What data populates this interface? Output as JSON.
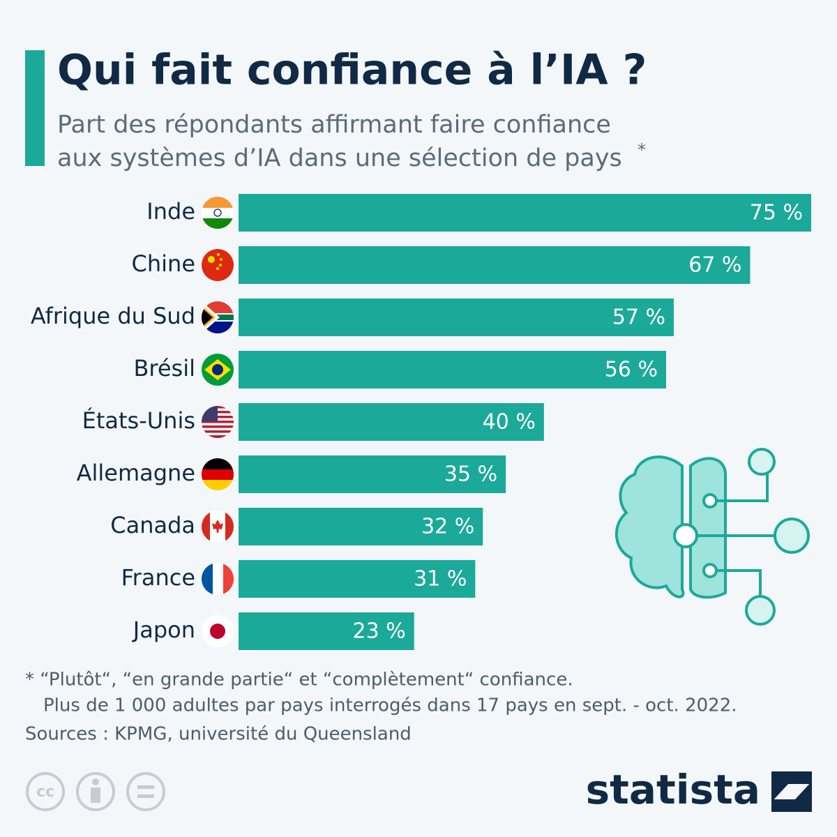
{
  "chart_data": {
    "type": "bar",
    "orientation": "horizontal",
    "title": "Qui fait confiance à l’IA ?",
    "subtitle": [
      "Part des répondants affirmant faire confiance",
      "aux systèmes d’IA dans une sélection de pays"
    ],
    "subtitle_mark": "*",
    "categories": [
      "Inde",
      "Chine",
      "Afrique du Sud",
      "Brésil",
      "États-Unis",
      "Allemagne",
      "Canada",
      "France",
      "Japon"
    ],
    "values": [
      75,
      67,
      57,
      56,
      40,
      35,
      32,
      31,
      23
    ],
    "value_labels": [
      "75 %",
      "67 %",
      "57 %",
      "56 %",
      "40 %",
      "35 %",
      "32 %",
      "31 %",
      "23 %"
    ],
    "color": "#1ba99a",
    "notes": [
      "* “Plutôt“, “en grande partie“ et “complètement“ confiance.",
      "Plus de 1 000 adultes par pays interrogés dans 17 pays en sept. - oct. 2022."
    ],
    "source": "Sources : KPMG, université du Queensland",
    "brand": "statista",
    "license_icon": "cc"
  }
}
